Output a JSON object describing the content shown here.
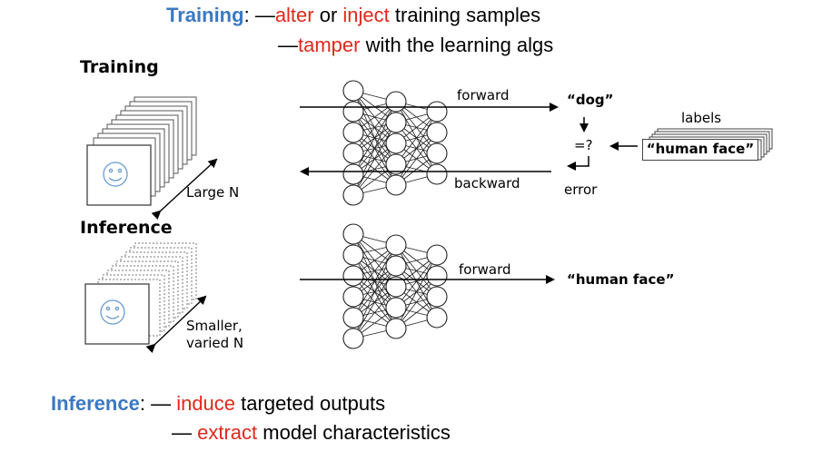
{
  "top_note": {
    "title": "Training",
    "colon": ":",
    "line1": {
      "dash": "—",
      "term1": "alter",
      "mid": " or ",
      "term2": "inject",
      "rest": " training samples"
    },
    "line2": {
      "dash": "—",
      "term": "tamper",
      "rest": " with the learning algs"
    }
  },
  "bottom_note": {
    "title": "Inference",
    "colon": ":",
    "line1": {
      "dash": "— ",
      "term": "induce",
      "rest": " targeted outputs"
    },
    "line2": {
      "dash": "— ",
      "term": "extract",
      "rest": " model characteristics"
    }
  },
  "training_panel": {
    "heading": "Training",
    "size_label": "Large N",
    "forward_label": "forward",
    "backward_label": "backward",
    "output_label": "“dog”",
    "compare_label": "=?",
    "error_label": "error",
    "labels_heading": "labels",
    "label_value": "“human face”"
  },
  "inference_panel": {
    "heading": "Inference",
    "size_label_line1": "Smaller,",
    "size_label_line2": "varied N",
    "forward_label": "forward",
    "output_label": "“human face”"
  },
  "colors": {
    "accent_blue": "#3b78c2",
    "accent_red": "#e0281c"
  }
}
